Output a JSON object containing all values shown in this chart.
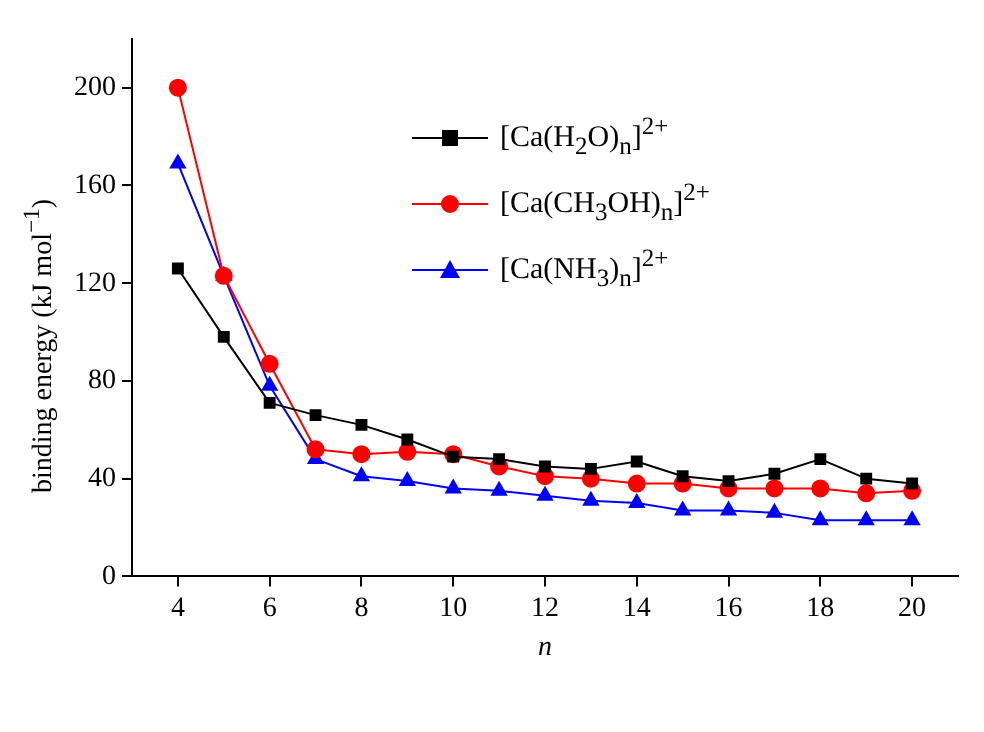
{
  "chart_data": {
    "type": "line",
    "xlabel": "n",
    "ylabel": "binding energy (kJ mol$^{−1}$)",
    "x": [
      4,
      5,
      6,
      7,
      8,
      9,
      10,
      11,
      12,
      13,
      14,
      15,
      16,
      17,
      18,
      19,
      20
    ],
    "xlim": [
      3,
      21
    ],
    "xticks": [
      4,
      6,
      8,
      10,
      12,
      14,
      16,
      18,
      20
    ],
    "ylim": [
      0,
      220
    ],
    "yticks": [
      0,
      40,
      80,
      120,
      160,
      200
    ],
    "grid": false,
    "legend": "top right",
    "line_style": "solid",
    "series": [
      {
        "name": "[Ca(H$_{2}$O)$_{n}$]$^{2+}$",
        "color": "#000000",
        "marker": "square",
        "values": [
          126,
          98,
          71,
          66,
          62,
          56,
          49,
          48,
          45,
          44,
          47,
          41,
          39,
          42,
          48,
          40,
          38
        ]
      },
      {
        "name": "[Ca(CH$_{3}$OH)$_{n}$]$^{2+}$",
        "color": "#ff0000",
        "marker": "circle",
        "values": [
          200,
          123,
          87,
          52,
          50,
          51,
          50,
          45,
          41,
          40,
          38,
          38,
          36,
          36,
          36,
          34,
          35
        ]
      },
      {
        "name": "[Ca(NH$_{3}$)$_{n}$]$^{2+}$",
        "color": "#0000ff",
        "marker": "triangle",
        "values": [
          169,
          123,
          78,
          48,
          41,
          39,
          36,
          35,
          33,
          31,
          30,
          27,
          27,
          26,
          23,
          23,
          23
        ]
      }
    ]
  }
}
